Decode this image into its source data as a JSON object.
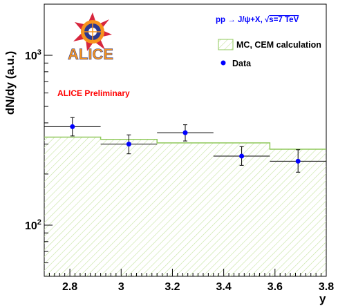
{
  "chart_data": {
    "type": "histogram-with-points",
    "xlabel": "y",
    "ylabel": "dN/dy (a.u.)",
    "xlim": [
      2.7,
      3.8
    ],
    "ylim": [
      50,
      2000
    ],
    "y_scale": "log",
    "grid": false,
    "x_ticks": [
      2.8,
      3.0,
      3.2,
      3.4,
      3.6,
      3.8
    ],
    "x_tick_labels": [
      "2.8",
      "3",
      "3.2",
      "3.4",
      "3.6",
      "3.8"
    ],
    "y_ticks": [
      100,
      1000
    ],
    "y_tick_labels": [
      {
        "base": "10",
        "exp": "2"
      },
      {
        "base": "10",
        "exp": "3"
      }
    ],
    "process_label": "pp → J/ψ+X, √s=7 TeV",
    "process_label_parts": {
      "pre": "pp → J/ψ+X, ",
      "sqrt": "√",
      "post": "s=7 TeV"
    },
    "preliminary_label": "ALICE Preliminary",
    "logo_text": "ALICE",
    "legend_position": "top-right",
    "legend": [
      {
        "label": "MC, CEM calculation",
        "kind": "hatched-box"
      },
      {
        "label": "Data",
        "kind": "marker"
      }
    ],
    "series": [
      {
        "name": "MC, CEM calculation",
        "kind": "histogram",
        "bins": [
          {
            "x_low": 2.7,
            "x_high": 2.92,
            "value": 330
          },
          {
            "x_low": 2.92,
            "x_high": 3.14,
            "value": 320
          },
          {
            "x_low": 3.14,
            "x_high": 3.58,
            "value": 305
          },
          {
            "x_low": 3.58,
            "x_high": 3.8,
            "value": 280
          }
        ]
      },
      {
        "name": "Data",
        "kind": "points",
        "points": [
          {
            "x": 2.81,
            "y": 380,
            "x_err": 0.11,
            "y_err_low": 45,
            "y_err_high": 50
          },
          {
            "x": 3.03,
            "y": 300,
            "x_err": 0.11,
            "y_err_low": 37,
            "y_err_high": 40
          },
          {
            "x": 3.25,
            "y": 350,
            "x_err": 0.11,
            "y_err_low": 37,
            "y_err_high": 40
          },
          {
            "x": 3.47,
            "y": 255,
            "x_err": 0.11,
            "y_err_low": 30,
            "y_err_high": 35
          },
          {
            "x": 3.69,
            "y": 238,
            "x_err": 0.11,
            "y_err_low": 33,
            "y_err_high": 40
          }
        ]
      }
    ]
  },
  "colors": {
    "mc_line": "#8fc85a",
    "mc_hatch": "#c4e3a0",
    "data_marker": "#0000ff",
    "process_text": "#0000ff",
    "prelim_text": "#ff0000",
    "logo_orange": "#f7941d",
    "logo_blue": "#2b3990",
    "logo_red": "#d7263d"
  }
}
